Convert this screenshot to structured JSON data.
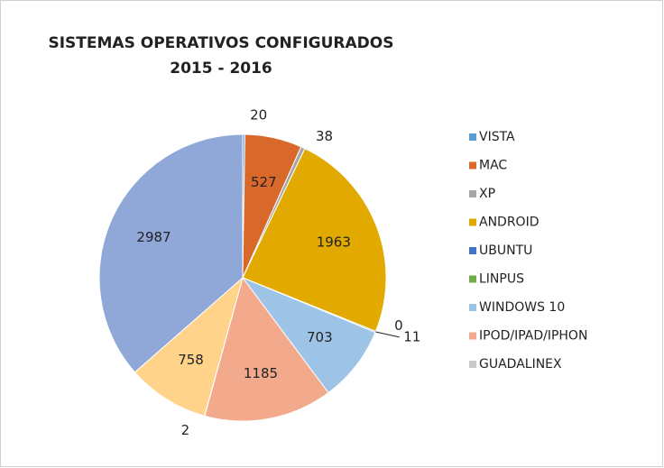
{
  "chart_data": {
    "type": "pie",
    "title": [
      "SISTEMAS OPERATIVOS CONFIGURADOS",
      "2015 - 2016"
    ],
    "categories": [
      "VISTA",
      "MAC",
      "XP",
      "ANDROID",
      "UBUNTU",
      "LINPUS",
      "WINDOWS 10",
      "IPOD/IPAD/IPHON",
      "GUADALINEX",
      null,
      null
    ],
    "values": [
      20,
      527,
      38,
      1963,
      11,
      0,
      703,
      1185,
      2,
      758,
      2987
    ],
    "colors": [
      "#5b9bd5",
      "#d9692a",
      "#a5a5a5",
      "#e2aa00",
      "#4472c4",
      "#70ad47",
      "#9dc3e6",
      "#f2a98c",
      "#c9c9c9",
      "#ffd38a",
      "#8fa8d8"
    ],
    "legend": "right"
  }
}
